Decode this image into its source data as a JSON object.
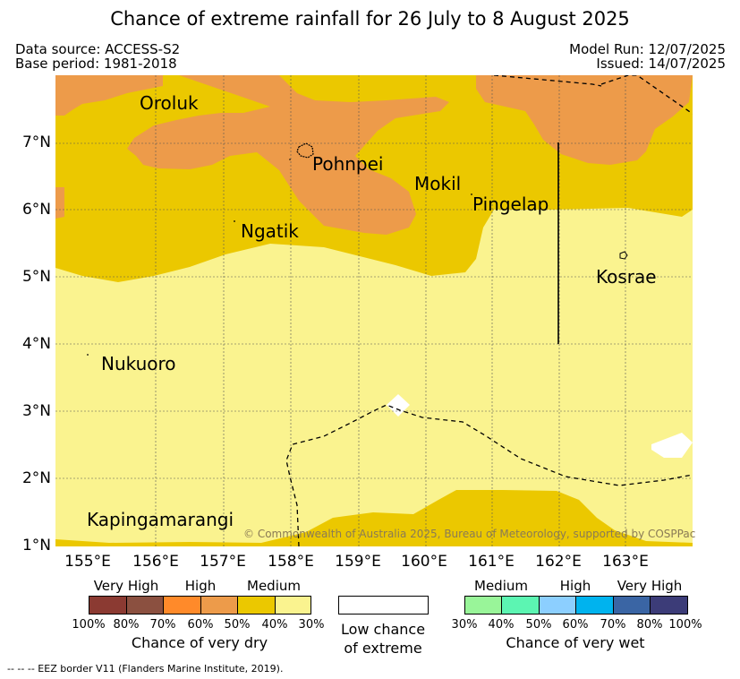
{
  "header": {
    "title": "Chance of extreme rainfall for 26 July to 8 August 2025",
    "data_source": "Data source: ACCESS-S2",
    "base_period": "Base period: 1981-2018",
    "model_run": "Model Run: 12/07/2025",
    "issued": "Issued: 14/07/2025"
  },
  "map": {
    "places": [
      "Oroluk",
      "Pohnpei",
      "Mokil",
      "Pingelap",
      "Ngatik",
      "Kosrae",
      "Nukuoro",
      "Kapingamarangi"
    ],
    "lat_labels": [
      "7°N",
      "6°N",
      "5°N",
      "4°N",
      "3°N",
      "2°N",
      "1°N"
    ],
    "lon_labels": [
      "155°E",
      "156°E",
      "157°E",
      "158°E",
      "159°E",
      "160°E",
      "161°E",
      "162°E",
      "163°E"
    ],
    "credit": "© Commonwealth of Australia 2025, Bureau of Meteorology, supported by COSPPac",
    "colors": {
      "high_dry": "#ed9b4a",
      "medium_dry_50": "#ebc800",
      "medium_dry_30": "#faf38f",
      "low": "#ffffff"
    }
  },
  "legend": {
    "dry": {
      "headers": [
        "Very High",
        "High",
        "Medium"
      ],
      "colors": [
        "#8b3a32",
        "#8b5040",
        "#ff8a2a",
        "#ed9b4a",
        "#ebc800",
        "#faf38f"
      ],
      "ticks": [
        "100%",
        "80%",
        "70%",
        "60%",
        "50%",
        "40%",
        "30%"
      ],
      "title": "Chance of very dry"
    },
    "low": {
      "title_line1": "Low chance",
      "title_line2": "of extreme"
    },
    "wet": {
      "headers": [
        "Medium",
        "High",
        "Very High"
      ],
      "colors": [
        "#99f599",
        "#5cf5b2",
        "#8ccfff",
        "#00b3ee",
        "#3a65a4",
        "#3c3c78"
      ],
      "ticks": [
        "30%",
        "40%",
        "50%",
        "60%",
        "70%",
        "80%",
        "100%"
      ],
      "title": "Chance of very wet"
    }
  },
  "footnote": "-- -- -- EEZ border V11 (Flanders Marine Institute, 2019)."
}
